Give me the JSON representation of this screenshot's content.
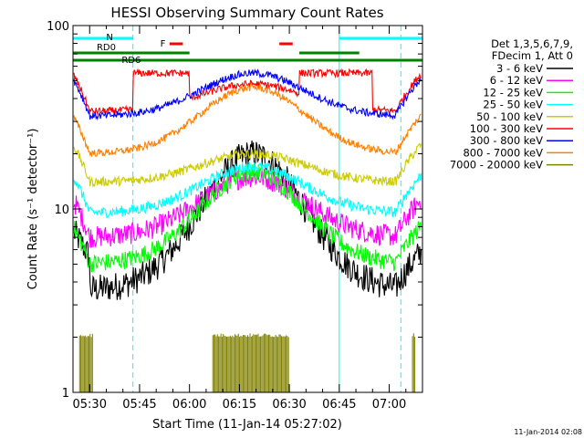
{
  "chart_data": {
    "type": "line",
    "title": "HESSI Observing Summary Count Rates",
    "xlabel": "Start Time (11-Jan-14 05:27:02)",
    "ylabel": "Count Rate (s⁻¹ detector⁻¹)",
    "yscale": "log",
    "ylim": [
      1,
      100
    ],
    "xlim_minutes": [
      -2,
      103
    ],
    "x_ticks": [
      {
        "m": 3,
        "label": "05:30"
      },
      {
        "m": 18,
        "label": "05:45"
      },
      {
        "m": 33,
        "label": "06:00"
      },
      {
        "m": 48,
        "label": "06:15"
      },
      {
        "m": 63,
        "label": "06:30"
      },
      {
        "m": 78,
        "label": "06:45"
      },
      {
        "m": 93,
        "label": "07:00"
      }
    ],
    "y_ticks": [
      {
        "v": 1,
        "label": "1"
      },
      {
        "v": 10,
        "label": "10"
      },
      {
        "v": 100,
        "label": "100"
      }
    ],
    "legend_header": [
      "Det 1,3,5,6,7,9,",
      "FDecim 1, Att 0"
    ],
    "series": [
      {
        "name": "3 - 6 keV",
        "color": "#000000"
      },
      {
        "name": "6 - 12 keV",
        "color": "#ff00ff"
      },
      {
        "name": "12 - 25 keV",
        "color": "#00ff00"
      },
      {
        "name": "25 - 50 keV",
        "color": "#00ffff"
      },
      {
        "name": "50 - 100 keV",
        "color": "#cccc00"
      },
      {
        "name": "100 - 300 keV",
        "color": "#ff0000"
      },
      {
        "name": "300 - 800 keV",
        "color": "#0000ff"
      },
      {
        "name": "800 - 7000 keV",
        "color": "#ff8000"
      },
      {
        "name": "7000 - 20000 keV",
        "color": "#808000"
      }
    ],
    "annotations": {
      "night_label": "N",
      "flare_label": "F",
      "rd0_label": "RD0",
      "rd6_label": "RD6"
    },
    "vertical_lines_minutes": [
      -2,
      16,
      78,
      96.5
    ],
    "timestamp": "11-Jan-2014 02:08"
  }
}
